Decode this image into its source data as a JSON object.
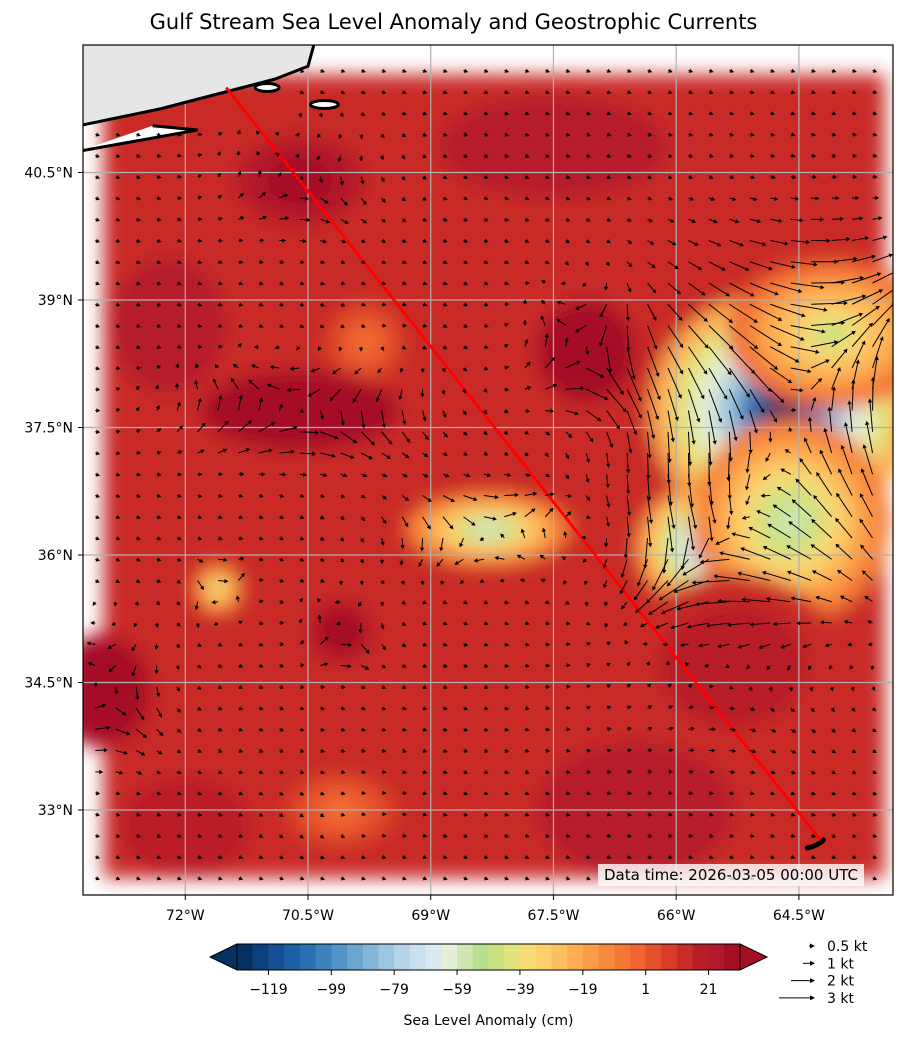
{
  "title": "Gulf Stream Sea Level Anomaly and Geostrophic Currents",
  "data_time": "Data time: 2026-03-05 00:00 UTC",
  "map": {
    "lon_range": [
      -73.25,
      -63.35
    ],
    "lat_range": [
      32.0,
      42.0
    ],
    "grid": true,
    "land_color": "#e6e6e6",
    "coastline_color": "#000000",
    "lon_ticks": [
      {
        "value": -72.0,
        "label": "72°W"
      },
      {
        "value": -70.5,
        "label": "70.5°W"
      },
      {
        "value": -69.0,
        "label": "69°W"
      },
      {
        "value": -67.5,
        "label": "67.5°W"
      },
      {
        "value": -66.0,
        "label": "66°W"
      },
      {
        "value": -64.5,
        "label": "64.5°W"
      }
    ],
    "lat_ticks": [
      {
        "value": 40.5,
        "label": "40.5°N"
      },
      {
        "value": 39.0,
        "label": "39°N"
      },
      {
        "value": 37.5,
        "label": "37.5°N"
      },
      {
        "value": 36.0,
        "label": "36°N"
      },
      {
        "value": 34.5,
        "label": "34.5°N"
      },
      {
        "value": 33.0,
        "label": "33°N"
      }
    ],
    "route": {
      "color": "#ff0000",
      "points": [
        [
          -71.5,
          41.5
        ],
        [
          -64.2,
          32.6
        ]
      ]
    },
    "eddies": [
      {
        "lon": -64.7,
        "lat": 37.7,
        "rx": 1.2,
        "ry": 1.05,
        "sla": -125
      },
      {
        "lon": -65.6,
        "lat": 36.1,
        "rx": 0.65,
        "ry": 0.55,
        "sla": -95
      },
      {
        "lon": -64.1,
        "lat": 38.6,
        "rx": 0.95,
        "ry": 0.65,
        "sla": -45
      },
      {
        "lon": -64.6,
        "lat": 36.4,
        "rx": 0.9,
        "ry": 0.9,
        "sla": -55
      },
      {
        "lon": -68.3,
        "lat": 36.3,
        "rx": 0.75,
        "ry": 0.32,
        "sla": -60
      },
      {
        "lon": -71.6,
        "lat": 35.6,
        "rx": 0.22,
        "ry": 0.22,
        "sla": -45
      },
      {
        "lon": -69.8,
        "lat": 38.5,
        "rx": 0.35,
        "ry": 0.35,
        "sla": -5
      },
      {
        "lon": -70.1,
        "lat": 33.0,
        "rx": 0.5,
        "ry": 0.32,
        "sla": -5
      },
      {
        "lon": -70.6,
        "lat": 37.7,
        "rx": 0.9,
        "ry": 0.35,
        "sla": 75
      },
      {
        "lon": -67.1,
        "lat": 38.4,
        "rx": 0.45,
        "ry": 0.45,
        "sla": 80
      },
      {
        "lon": -70.1,
        "lat": 35.1,
        "rx": 0.3,
        "ry": 0.28,
        "sla": 45
      },
      {
        "lon": -73.0,
        "lat": 34.4,
        "rx": 0.45,
        "ry": 0.5,
        "sla": 55
      },
      {
        "lon": -70.6,
        "lat": 40.4,
        "rx": 0.6,
        "ry": 0.4,
        "sla": 35
      },
      {
        "lon": -65.3,
        "lat": 34.7,
        "rx": 1.0,
        "ry": 0.8,
        "sla": 20
      }
    ],
    "background_sla": 12
  },
  "colorbar": {
    "label": "Sea Level Anomaly (cm)",
    "vmin": -129,
    "vmax": 31,
    "steps": 32,
    "tick_values": [
      -119,
      -99,
      -79,
      -59,
      -39,
      -19,
      1,
      21
    ],
    "tick_labels": [
      "−119",
      "−99",
      "−79",
      "−59",
      "−39",
      "−19",
      "1",
      "21"
    ],
    "colors": [
      "#053061",
      "#0b3f7e",
      "#144f93",
      "#1c5fa4",
      "#2870b2",
      "#3c82bd",
      "#5294c7",
      "#6aa6d0",
      "#83b6d8",
      "#9dc6e0",
      "#b5d4e8",
      "#c9e0ee",
      "#d9e9f2",
      "#e3efd6",
      "#cfe7b0",
      "#b8de8f",
      "#c8e07f",
      "#e3e480",
      "#f7dc78",
      "#fdd06c",
      "#fdc05e",
      "#fdae52",
      "#fb9c47",
      "#f88a3d",
      "#f47935",
      "#ef6430",
      "#e4502b",
      "#d83c27",
      "#c92c26",
      "#b81d27",
      "#b2182b",
      "#a50f26"
    ]
  },
  "quiver_key": [
    {
      "speed": 0.5,
      "label": "0.5 kt"
    },
    {
      "speed": 1,
      "label": "1 kt"
    },
    {
      "speed": 2,
      "label": "2 kt"
    },
    {
      "speed": 3,
      "label": "3 kt"
    }
  ]
}
